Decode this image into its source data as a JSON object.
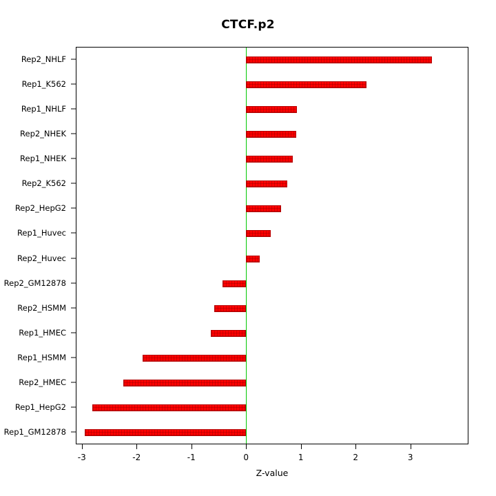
{
  "title": "CTCF.p2",
  "chart_data": {
    "type": "bar",
    "orientation": "horizontal",
    "title": "CTCF.p2",
    "xlabel": "Z-value",
    "ylabel": "",
    "categories": [
      "Rep2_NHLF",
      "Rep1_K562",
      "Rep1_NHLF",
      "Rep2_NHEK",
      "Rep1_NHEK",
      "Rep2_K562",
      "Rep2_HepG2",
      "Rep1_Huvec",
      "Rep2_Huvec",
      "Rep2_GM12878",
      "Rep2_HSMM",
      "Rep1_HMEC",
      "Rep1_HSMM",
      "Rep2_HMEC",
      "Rep1_HepG2",
      "Rep1_GM12878"
    ],
    "values": [
      3.4,
      2.2,
      0.93,
      0.92,
      0.85,
      0.75,
      0.64,
      0.45,
      0.25,
      -0.44,
      -0.59,
      -0.65,
      -1.9,
      -2.25,
      -2.82,
      -2.96
    ],
    "x_ticks": [
      -3,
      -2,
      -1,
      0,
      1,
      2,
      3
    ],
    "xlim": [
      -3.11,
      4.06
    ],
    "grid": false,
    "legend": "none",
    "bar_color": "#ff0000",
    "bar_border_color": "#b40000",
    "zero_line_color": "#00c800",
    "zero_line_x": 0
  }
}
